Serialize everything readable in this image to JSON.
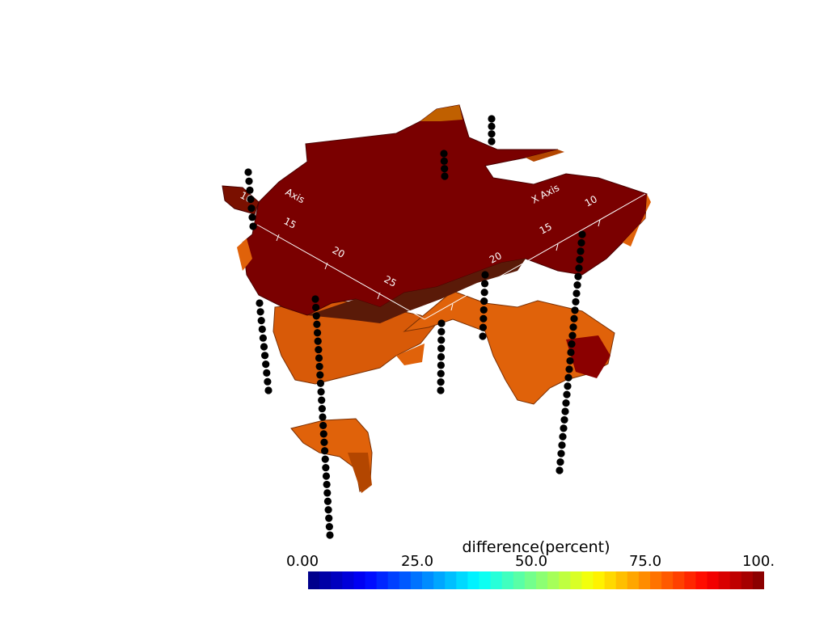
{
  "colorbar": {
    "title": "difference(percent)",
    "ticks": [
      "0.00",
      "25.0",
      "50.0",
      "75.0",
      "100."
    ],
    "colormap": "jet",
    "range": [
      0,
      100
    ]
  },
  "axes": {
    "x_label": "X Axis",
    "y_label": "Axis",
    "x_ticks": [
      "10",
      "15",
      "20"
    ],
    "y_ticks": [
      "10",
      "15",
      "20",
      "25"
    ],
    "color": "#ffffff"
  },
  "surface": {
    "upper_color": "#6e0000",
    "lower_color": "#e05a00",
    "edge_color": "#3a1a00"
  },
  "wells": {
    "marker_color": "#000000",
    "count": 8
  }
}
